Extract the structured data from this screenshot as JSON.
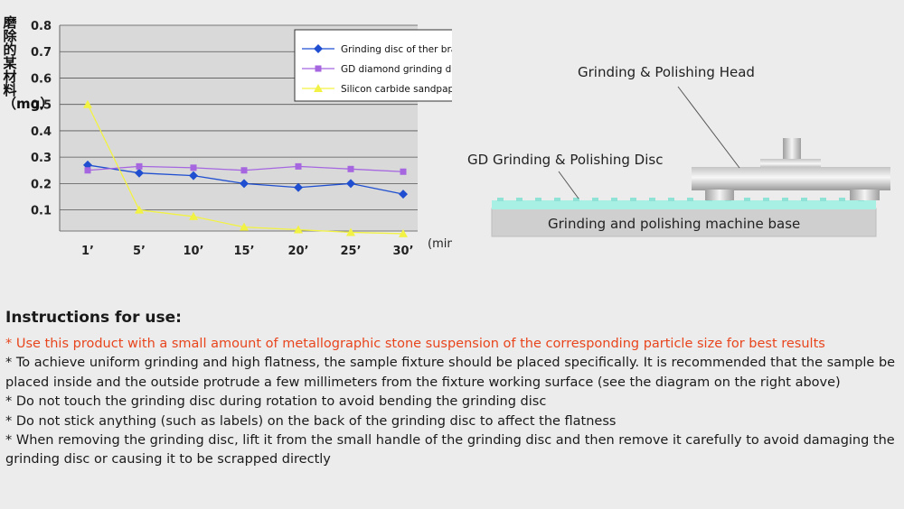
{
  "chart_data": {
    "type": "line",
    "ylabel": "磨除的某材料（mg）",
    "xlabel": "(mins)",
    "categories": [
      "1’",
      "5’",
      "10’",
      "15’",
      "20’",
      "25’",
      "30’"
    ],
    "yticks": [
      "0.1",
      "0.2",
      "0.3",
      "0.4",
      "0.5",
      "0.6",
      "0.7",
      "0.8"
    ],
    "ylim": [
      0.02,
      0.8
    ],
    "grid": true,
    "legend_position": "top-right",
    "series": [
      {
        "name": "Grinding disc of ther brand",
        "color": "#1f4fd0",
        "marker": "diamond",
        "values": [
          0.27,
          0.24,
          0.23,
          0.2,
          0.185,
          0.2,
          0.16
        ]
      },
      {
        "name": "GD diamond grinding disc",
        "color": "#a566e0",
        "marker": "square",
        "values": [
          0.25,
          0.265,
          0.26,
          0.25,
          0.265,
          0.255,
          0.245
        ]
      },
      {
        "name": "Silicon carbide sandpaper",
        "color": "#f2f244",
        "marker": "triangle",
        "values": [
          0.5,
          0.1,
          0.075,
          0.035,
          0.025,
          0.015,
          0.01
        ]
      }
    ]
  },
  "diagram": {
    "head_label": "Grinding & Polishing Head",
    "disc_label": "GD Grinding & Polishing Disc",
    "base_label": "Grinding and polishing machine base"
  },
  "instructions": {
    "title": "Instructions for use:",
    "items": [
      "* Use this product with a small amount of metallographic stone suspension of the corresponding particle size for best results",
      "* To achieve uniform grinding and high flatness, the sample fixture should be placed specifically.  It is recommended that the sample be placed inside and the outside protrude a few millimeters from the fixture working surface (see the diagram on the right above)",
      "* Do not touch the grinding disc during rotation to avoid bending the grinding disc",
      "* Do not stick anything (such as labels) on the back of the grinding disc to affect the flatness",
      "* When removing the grinding disc, lift it from the small handle of the grinding disc and then remove it carefully to avoid damaging the grinding disc or causing it to be scrapped directly"
    ]
  }
}
